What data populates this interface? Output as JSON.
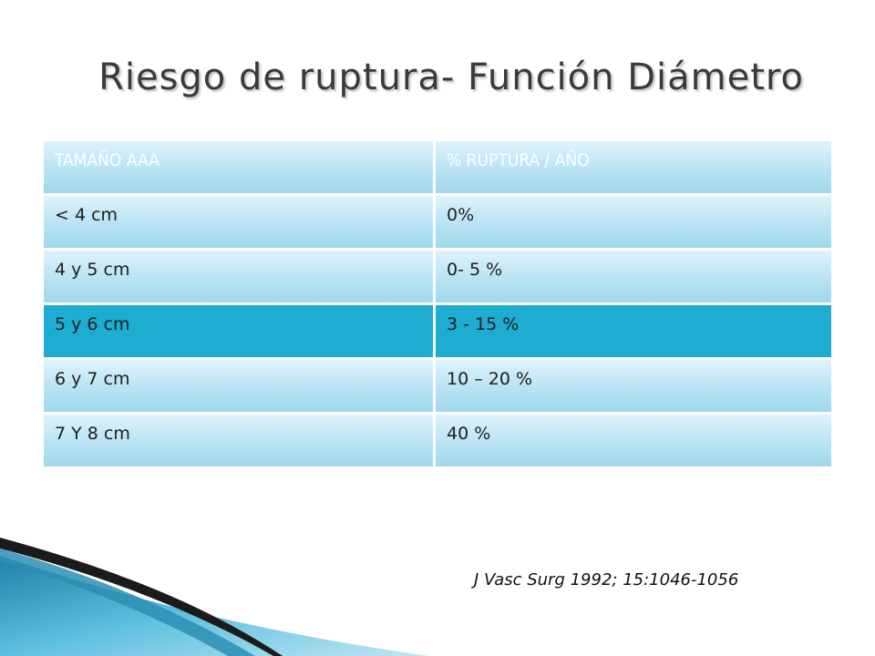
{
  "title": "Riesgo de ruptura- Función Diámetro",
  "table": {
    "headers": [
      "TAMAÑO AAA",
      "% RUPTURA / AÑO"
    ],
    "rows": [
      [
        "< 4 cm",
        "0%"
      ],
      [
        "4 y 5 cm",
        "0- 5 %"
      ],
      [
        "5 y 6 cm",
        "3 - 15 %"
      ],
      [
        "6 y 7 cm",
        "10 – 20 %"
      ],
      [
        "7 Y 8 cm",
        "40 %"
      ]
    ],
    "highlight_row": 2
  },
  "citation": "J Vasc Surg 1992; 15:1046-1056",
  "colors": {
    "header_text": "#ffffff",
    "cell_light": "#b8e3f3",
    "highlight": "#1facd1",
    "deco_dark": "#1b1b1b",
    "deco_blue": "#2a8fb4"
  }
}
